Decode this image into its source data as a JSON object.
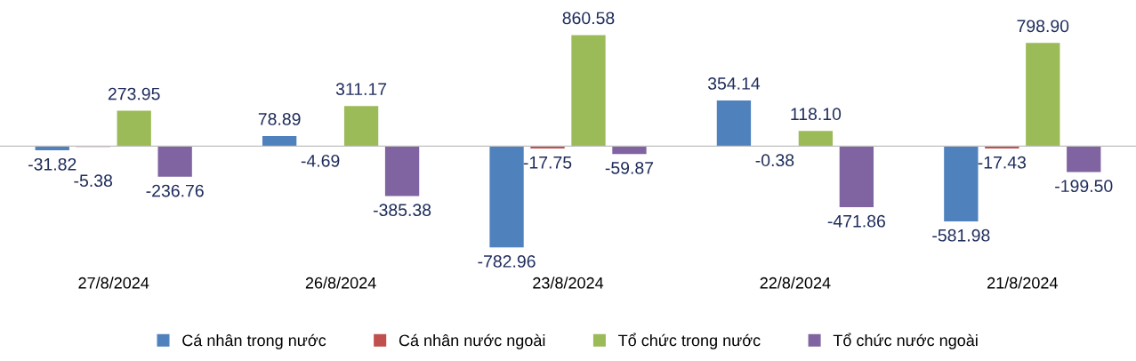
{
  "chart_data": {
    "type": "bar",
    "categories": [
      "27/8/2024",
      "26/8/2024",
      "23/8/2024",
      "22/8/2024",
      "21/8/2024"
    ],
    "series": [
      {
        "name": "Cá nhân trong nước",
        "color": "#4f81bd",
        "values": [
          -31.82,
          78.89,
          -782.96,
          354.14,
          -581.98
        ],
        "value_labels": [
          "-31.82",
          "78.89",
          "-782.96",
          "354.14",
          "-581.98"
        ]
      },
      {
        "name": "Cá nhân nước ngoài",
        "color": "#c0504d",
        "values": [
          -5.38,
          -4.69,
          -17.75,
          -0.38,
          -17.43
        ],
        "value_labels": [
          "-5.38",
          "-4.69",
          "-17.75",
          "-0.38",
          "-17.43"
        ]
      },
      {
        "name": "Tổ chức trong nước",
        "color": "#9bbb59",
        "values": [
          273.95,
          311.17,
          860.58,
          118.1,
          798.9
        ],
        "value_labels": [
          "273.95",
          "311.17",
          "860.58",
          "118.10",
          "798.90"
        ]
      },
      {
        "name": "Tổ chức nước ngoài",
        "color": "#8064a2",
        "values": [
          -236.76,
          -385.38,
          -59.87,
          -471.86,
          -199.5
        ],
        "value_labels": [
          "-236.76",
          "-385.38",
          "-59.87",
          "-471.86",
          "-199.50"
        ]
      }
    ],
    "legend": "bottom"
  }
}
